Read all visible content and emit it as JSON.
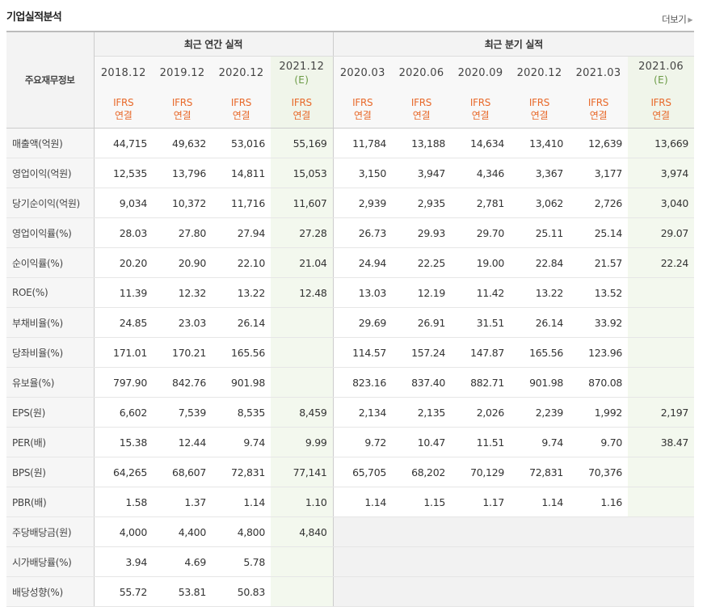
{
  "section_title": "기업실적분석",
  "more_label": "더보기",
  "header": {
    "corner": "주요재무정보",
    "annual_group": "최근 연간 실적",
    "quarter_group": "최근 분기 실적",
    "annual_periods": [
      {
        "date": "2018.12",
        "est": ""
      },
      {
        "date": "2019.12",
        "est": ""
      },
      {
        "date": "2020.12",
        "est": ""
      },
      {
        "date": "2021.12",
        "est": "(E)"
      }
    ],
    "quarter_periods": [
      {
        "date": "2020.03",
        "est": ""
      },
      {
        "date": "2020.06",
        "est": ""
      },
      {
        "date": "2020.09",
        "est": ""
      },
      {
        "date": "2020.12",
        "est": ""
      },
      {
        "date": "2021.03",
        "est": ""
      },
      {
        "date": "2021.06",
        "est": "(E)"
      }
    ],
    "ifrs_line1": "IFRS",
    "ifrs_line2": "연결"
  },
  "rows": [
    {
      "label": "매출액(억원)",
      "annual": [
        "44,715",
        "49,632",
        "53,016",
        "55,169"
      ],
      "quarter": [
        "11,784",
        "13,188",
        "14,634",
        "13,410",
        "12,639",
        "13,669"
      ]
    },
    {
      "label": "영업이익(억원)",
      "annual": [
        "12,535",
        "13,796",
        "14,811",
        "15,053"
      ],
      "quarter": [
        "3,150",
        "3,947",
        "4,346",
        "3,367",
        "3,177",
        "3,974"
      ]
    },
    {
      "label": "당기순이익(억원)",
      "annual": [
        "9,034",
        "10,372",
        "11,716",
        "11,607"
      ],
      "quarter": [
        "2,939",
        "2,935",
        "2,781",
        "3,062",
        "2,726",
        "3,040"
      ]
    },
    {
      "label": "영업이익률(%)",
      "annual": [
        "28.03",
        "27.80",
        "27.94",
        "27.28"
      ],
      "quarter": [
        "26.73",
        "29.93",
        "29.70",
        "25.11",
        "25.14",
        "29.07"
      ]
    },
    {
      "label": "순이익률(%)",
      "annual": [
        "20.20",
        "20.90",
        "22.10",
        "21.04"
      ],
      "quarter": [
        "24.94",
        "22.25",
        "19.00",
        "22.84",
        "21.57",
        "22.24"
      ]
    },
    {
      "label": "ROE(%)",
      "annual": [
        "11.39",
        "12.32",
        "13.22",
        "12.48"
      ],
      "quarter": [
        "13.03",
        "12.19",
        "11.42",
        "13.22",
        "13.52",
        ""
      ]
    },
    {
      "label": "부채비율(%)",
      "annual": [
        "24.85",
        "23.03",
        "26.14",
        ""
      ],
      "quarter": [
        "29.69",
        "26.91",
        "31.51",
        "26.14",
        "33.92",
        ""
      ]
    },
    {
      "label": "당좌비율(%)",
      "annual": [
        "171.01",
        "170.21",
        "165.56",
        ""
      ],
      "quarter": [
        "114.57",
        "157.24",
        "147.87",
        "165.56",
        "123.96",
        ""
      ]
    },
    {
      "label": "유보율(%)",
      "annual": [
        "797.90",
        "842.76",
        "901.98",
        ""
      ],
      "quarter": [
        "823.16",
        "837.40",
        "882.71",
        "901.98",
        "870.08",
        ""
      ]
    },
    {
      "label": "EPS(원)",
      "annual": [
        "6,602",
        "7,539",
        "8,535",
        "8,459"
      ],
      "quarter": [
        "2,134",
        "2,135",
        "2,026",
        "2,239",
        "1,992",
        "2,197"
      ]
    },
    {
      "label": "PER(배)",
      "annual": [
        "15.38",
        "12.44",
        "9.74",
        "9.99"
      ],
      "quarter": [
        "9.72",
        "10.47",
        "11.51",
        "9.74",
        "9.70",
        "38.47"
      ]
    },
    {
      "label": "BPS(원)",
      "annual": [
        "64,265",
        "68,607",
        "72,831",
        "77,141"
      ],
      "quarter": [
        "65,705",
        "68,202",
        "70,129",
        "72,831",
        "70,376",
        ""
      ]
    },
    {
      "label": "PBR(배)",
      "annual": [
        "1.58",
        "1.37",
        "1.14",
        "1.10"
      ],
      "quarter": [
        "1.14",
        "1.15",
        "1.17",
        "1.14",
        "1.16",
        ""
      ]
    },
    {
      "label": "주당배당금(원)",
      "annual": [
        "4,000",
        "4,400",
        "4,800",
        "4,840"
      ],
      "quarter": [
        "",
        "",
        "",
        "",
        "",
        ""
      ]
    },
    {
      "label": "시가배당률(%)",
      "annual": [
        "3.94",
        "4.69",
        "5.78",
        ""
      ],
      "quarter": [
        "",
        "",
        "",
        "",
        "",
        ""
      ]
    },
    {
      "label": "배당성향(%)",
      "annual": [
        "55.72",
        "53.81",
        "50.83",
        ""
      ],
      "quarter": [
        "",
        "",
        "",
        "",
        "",
        ""
      ]
    }
  ]
}
